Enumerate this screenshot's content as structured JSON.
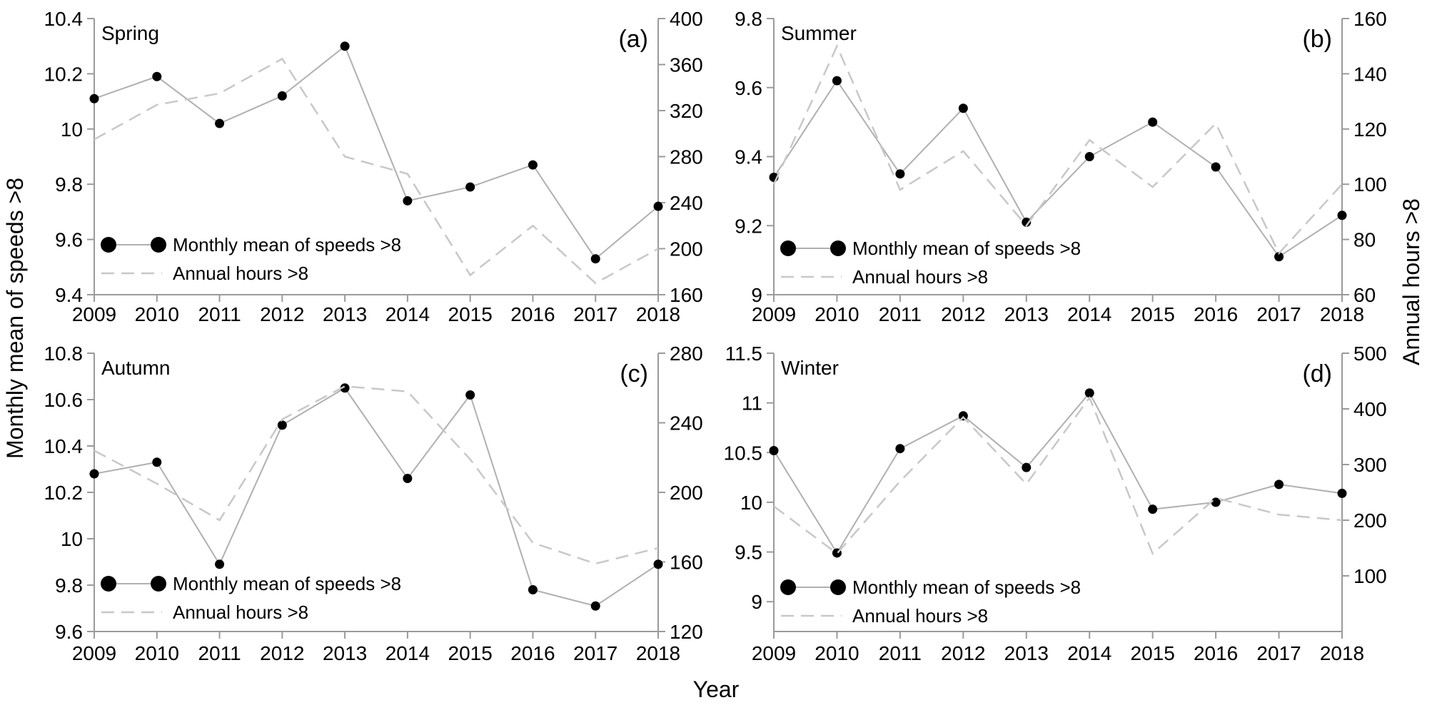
{
  "chart_data": [
    {
      "type": "line",
      "id": "a",
      "panel_label": "(a)",
      "season": "Spring",
      "x": [
        2009,
        2010,
        2011,
        2012,
        2013,
        2014,
        2015,
        2016,
        2017,
        2018
      ],
      "x_tick_labels": [
        "2009",
        "2010",
        "2011",
        "2012",
        "2013",
        "2014",
        "2015",
        "2016",
        "2017",
        "2018"
      ],
      "left_axis": {
        "ylim": [
          9.4,
          10.4
        ],
        "ticks": [
          9.4,
          9.6,
          9.8,
          10,
          10.2,
          10.4
        ],
        "tick_labels": [
          "9.4",
          "9.6",
          "9.8",
          "10",
          "10.2",
          "10.4"
        ]
      },
      "right_axis": {
        "ylim": [
          160,
          400
        ],
        "ticks": [
          160,
          200,
          240,
          280,
          320,
          360,
          400
        ],
        "tick_labels": [
          "160",
          "200",
          "240",
          "280",
          "320",
          "360",
          "400"
        ]
      },
      "series": [
        {
          "name": "Monthly mean of speeds >8",
          "axis": "left",
          "style": "solid-markers",
          "values": [
            10.11,
            10.19,
            10.02,
            10.12,
            10.3,
            9.74,
            9.79,
            9.87,
            9.53,
            9.72
          ]
        },
        {
          "name": "Annual hours >8",
          "axis": "right",
          "style": "dashed",
          "values": [
            295,
            325,
            335,
            365,
            280,
            265,
            177,
            220,
            170,
            200
          ]
        }
      ]
    },
    {
      "type": "line",
      "id": "b",
      "panel_label": "(b)",
      "season": "Summer",
      "x": [
        2009,
        2010,
        2011,
        2012,
        2013,
        2014,
        2015,
        2016,
        2017,
        2018
      ],
      "x_tick_labels": [
        "2009",
        "2010",
        "2011",
        "2012",
        "2013",
        "2014",
        "2015",
        "2016",
        "2017",
        "2018"
      ],
      "left_axis": {
        "ylim": [
          9.0,
          9.8
        ],
        "ticks": [
          9.0,
          9.2,
          9.4,
          9.6,
          9.8
        ],
        "tick_labels": [
          "9",
          "9.2",
          "9.4",
          "9.6",
          "9.8"
        ]
      },
      "right_axis": {
        "ylim": [
          60,
          160
        ],
        "ticks": [
          60,
          80,
          100,
          120,
          140,
          160
        ],
        "tick_labels": [
          "60",
          "80",
          "100",
          "120",
          "140",
          "160"
        ]
      },
      "series": [
        {
          "name": "Monthly mean of speeds >8",
          "axis": "left",
          "style": "solid-markers",
          "values": [
            9.34,
            9.62,
            9.35,
            9.54,
            9.21,
            9.4,
            9.5,
            9.37,
            9.11,
            9.23
          ]
        },
        {
          "name": "Annual hours >8",
          "axis": "right",
          "style": "dashed",
          "values": [
            100,
            150,
            98,
            112,
            85,
            116,
            99,
            122,
            75,
            100
          ]
        }
      ]
    },
    {
      "type": "line",
      "id": "c",
      "panel_label": "(c)",
      "season": "Autumn",
      "x": [
        2009,
        2010,
        2011,
        2012,
        2013,
        2014,
        2015,
        2016,
        2017,
        2018
      ],
      "x_tick_labels": [
        "2009",
        "2010",
        "2011",
        "2012",
        "2013",
        "2014",
        "2015",
        "2016",
        "2017",
        "2018"
      ],
      "left_axis": {
        "ylim": [
          9.6,
          10.8
        ],
        "ticks": [
          9.6,
          9.8,
          10,
          10.2,
          10.4,
          10.6,
          10.8
        ],
        "tick_labels": [
          "9.6",
          "9.8",
          "10",
          "10.2",
          "10.4",
          "10.6",
          "10.8"
        ]
      },
      "right_axis": {
        "ylim": [
          120,
          280
        ],
        "ticks": [
          120,
          160,
          200,
          240,
          280
        ],
        "tick_labels": [
          "120",
          "160",
          "200",
          "240",
          "280"
        ]
      },
      "series": [
        {
          "name": "Monthly mean of speeds >8",
          "axis": "left",
          "style": "solid-markers",
          "values": [
            10.28,
            10.33,
            9.89,
            10.49,
            10.65,
            10.26,
            10.62,
            9.78,
            9.71,
            9.89
          ]
        },
        {
          "name": "Annual hours >8",
          "axis": "right",
          "style": "dashed",
          "values": [
            224,
            205,
            184,
            242,
            261,
            258,
            219,
            171,
            159,
            168
          ]
        }
      ]
    },
    {
      "type": "line",
      "id": "d",
      "panel_label": "(d)",
      "season": "Winter",
      "x": [
        2009,
        2010,
        2011,
        2012,
        2013,
        2014,
        2015,
        2016,
        2017,
        2018
      ],
      "x_tick_labels": [
        "2009",
        "2010",
        "2011",
        "2012",
        "2013",
        "2014",
        "2015",
        "2016",
        "2017",
        "2018"
      ],
      "left_axis": {
        "ylim": [
          8.7,
          11.5
        ],
        "ticks": [
          9,
          9.5,
          10,
          10.5,
          11,
          11.5
        ],
        "tick_labels": [
          "9",
          "9.5",
          "10",
          "10.5",
          "11",
          "11.5"
        ]
      },
      "right_axis": {
        "ylim": [
          0,
          500
        ],
        "ticks": [
          100,
          200,
          300,
          400,
          500
        ],
        "tick_labels": [
          "100",
          "200",
          "300",
          "400",
          "500"
        ]
      },
      "series": [
        {
          "name": "Monthly mean of speeds >8",
          "axis": "left",
          "style": "solid-markers",
          "values": [
            10.52,
            9.49,
            10.54,
            10.87,
            10.35,
            11.1,
            9.93,
            10.0,
            10.18,
            10.09
          ]
        },
        {
          "name": "Annual hours >8",
          "axis": "right",
          "style": "dashed",
          "values": [
            225,
            140,
            270,
            385,
            265,
            420,
            140,
            240,
            210,
            200
          ]
        }
      ]
    }
  ],
  "shared": {
    "xlabel": "Year",
    "ylabel_left": "Monthly mean of speeds >8",
    "ylabel_right": "Annual hours >8",
    "legend": [
      "Monthly mean of speeds >8",
      "Annual hours >8"
    ],
    "colors": {
      "axis": "#9a9a9a",
      "solid_line": "#b0b0b0",
      "dashed_line": "#c8c8c8",
      "marker": "#000000"
    }
  }
}
